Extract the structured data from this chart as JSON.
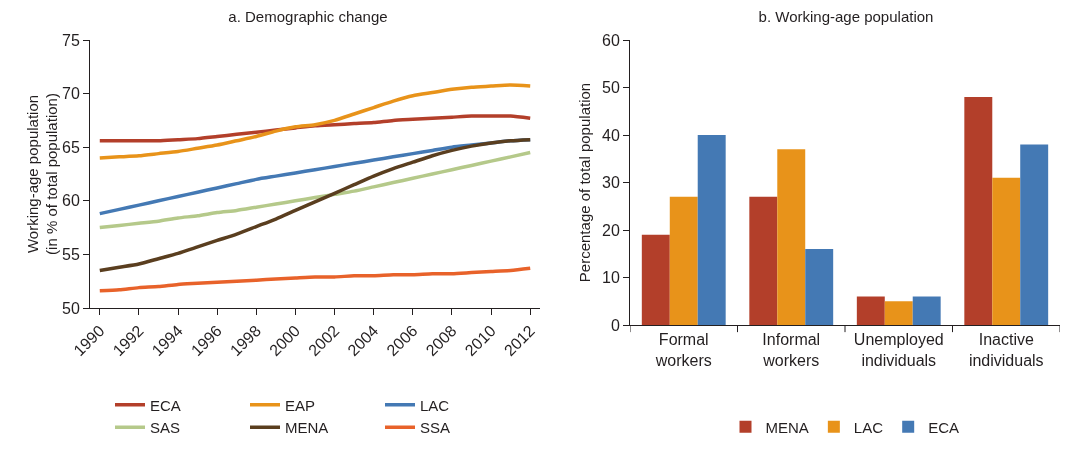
{
  "chart_data": [
    {
      "type": "line",
      "title": "a. Demographic change",
      "ylabel": "Working-age population\n(in % of total population)",
      "x": [
        1990,
        1991,
        1992,
        1993,
        1994,
        1995,
        1996,
        1997,
        1998,
        1999,
        2000,
        2001,
        2002,
        2003,
        2004,
        2005,
        2006,
        2007,
        2008,
        2009,
        2010,
        2011,
        2012
      ],
      "xlim": [
        1989.5,
        2012.5
      ],
      "xticks": [
        1990,
        1992,
        1994,
        1996,
        1998,
        2000,
        2002,
        2004,
        2006,
        2008,
        2010,
        2012
      ],
      "ylim": [
        50,
        75
      ],
      "yticks": [
        50,
        55,
        60,
        65,
        70,
        75
      ],
      "grid": false,
      "legend": "bottom",
      "marker": "none",
      "line_style": "solid",
      "series": [
        {
          "name": "ECA",
          "color": "#b33f2a",
          "values": [
            65.6,
            65.6,
            65.6,
            65.6,
            65.7,
            65.8,
            66.0,
            66.2,
            66.4,
            66.6,
            66.8,
            67.0,
            67.1,
            67.2,
            67.3,
            67.5,
            67.6,
            67.7,
            67.8,
            67.9,
            67.9,
            67.9,
            67.7
          ]
        },
        {
          "name": "EAP",
          "color": "#e8931a",
          "values": [
            64.0,
            64.1,
            64.2,
            64.4,
            64.6,
            64.9,
            65.2,
            65.6,
            66.0,
            66.5,
            66.9,
            67.1,
            67.5,
            68.1,
            68.7,
            69.3,
            69.8,
            70.1,
            70.4,
            70.6,
            70.7,
            70.8,
            70.7
          ]
        },
        {
          "name": "LAC",
          "color": "#4479b4",
          "values": [
            58.8,
            59.2,
            59.6,
            60.0,
            60.4,
            60.8,
            61.2,
            61.6,
            62.0,
            62.3,
            62.6,
            62.9,
            63.2,
            63.5,
            63.8,
            64.1,
            64.4,
            64.7,
            65.0,
            65.2,
            65.4,
            65.6,
            65.7
          ]
        },
        {
          "name": "SAS",
          "color": "#b5c98a",
          "values": [
            57.5,
            57.7,
            57.9,
            58.1,
            58.4,
            58.6,
            58.9,
            59.1,
            59.4,
            59.7,
            60.0,
            60.3,
            60.6,
            60.9,
            61.3,
            61.7,
            62.1,
            62.5,
            62.9,
            63.3,
            63.7,
            64.1,
            64.5
          ]
        },
        {
          "name": "MENA",
          "color": "#5a3e1f",
          "values": [
            53.5,
            53.8,
            54.1,
            54.6,
            55.1,
            55.7,
            56.3,
            56.9,
            57.6,
            58.3,
            59.1,
            59.9,
            60.7,
            61.5,
            62.3,
            63.0,
            63.6,
            64.2,
            64.7,
            65.1,
            65.4,
            65.6,
            65.7
          ]
        },
        {
          "name": "SSA",
          "color": "#e8622a",
          "values": [
            51.6,
            51.7,
            51.9,
            52.0,
            52.2,
            52.3,
            52.4,
            52.5,
            52.6,
            52.7,
            52.8,
            52.9,
            52.9,
            53.0,
            53.0,
            53.1,
            53.1,
            53.2,
            53.2,
            53.3,
            53.4,
            53.5,
            53.7
          ]
        }
      ]
    },
    {
      "type": "bar",
      "title": "b. Working-age population",
      "ylabel": "Percentage of total population",
      "categories": [
        "Formal workers",
        "Informal workers",
        "Unemployed individuals",
        "Inactive individuals"
      ],
      "ylim": [
        0,
        60
      ],
      "yticks": [
        0,
        10,
        20,
        30,
        40,
        50,
        60
      ],
      "grid": false,
      "legend": "bottom",
      "series": [
        {
          "name": "MENA",
          "color": "#b33f2a",
          "values": [
            19,
            27,
            6,
            48
          ]
        },
        {
          "name": "LAC",
          "color": "#e8931a",
          "values": [
            27,
            37,
            5,
            31
          ]
        },
        {
          "name": "ECA",
          "color": "#4479b4",
          "values": [
            40,
            16,
            6,
            38
          ]
        }
      ]
    }
  ]
}
